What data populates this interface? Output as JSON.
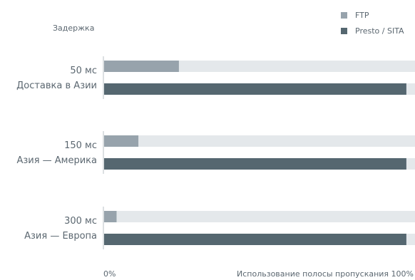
{
  "chart_data": {
    "type": "bar",
    "orientation": "horizontal",
    "categories": [
      {
        "delay": "50 мс",
        "route": "Доставка в Азии"
      },
      {
        "delay": "150 мс",
        "route": "Азия — Америка"
      },
      {
        "delay": "300 мс",
        "route": "Азия — Европа"
      }
    ],
    "series": [
      {
        "name": "FTP",
        "color": "#97a3ac",
        "values": [
          24,
          11,
          4
        ]
      },
      {
        "name": "Presto / SITA",
        "color": "#556770",
        "values": [
          97,
          97,
          97
        ]
      }
    ],
    "track_color": "#e4e8eb",
    "ylabel": "Задержка",
    "xlabel": "Использование полосы пропускания",
    "x_tick_min": "0%",
    "x_tick_max": "100%",
    "xlim": [
      0,
      100
    ],
    "legend_position": "top-right",
    "grid": false
  }
}
